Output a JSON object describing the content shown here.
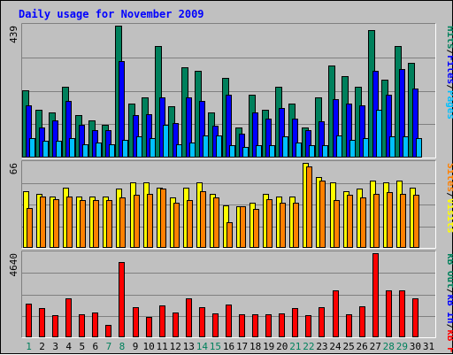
{
  "chart_data": [
    {
      "type": "bar",
      "title": "Daily usage for November 2009",
      "axis_max_label": "439",
      "right_labels": [
        "Pages",
        "/",
        "Files",
        "/",
        "Hits"
      ],
      "categories": [
        "1",
        "2",
        "3",
        "4",
        "5",
        "6",
        "7",
        "8",
        "9",
        "10",
        "11",
        "12",
        "13",
        "14",
        "15",
        "16",
        "17",
        "18",
        "19",
        "20",
        "21",
        "22",
        "23",
        "24",
        "25",
        "26",
        "27",
        "28",
        "29",
        "30",
        "31"
      ],
      "weekend_days": [
        1,
        7,
        8,
        14,
        15,
        21,
        22,
        28,
        29
      ],
      "ylim": [
        0,
        439
      ],
      "series": [
        {
          "name": "Hits",
          "color": "#00805c",
          "values": [
            225,
            160,
            150,
            235,
            140,
            125,
            110,
            439,
            180,
            200,
            370,
            170,
            300,
            290,
            150,
            265,
            100,
            210,
            160,
            235,
            180,
            100,
            200,
            305,
            270,
            235,
            425,
            260,
            370,
            315,
            0
          ]
        },
        {
          "name": "Files",
          "color": "#0000ff",
          "values": [
            175,
            100,
            125,
            190,
            110,
            90,
            90,
            320,
            140,
            145,
            200,
            115,
            200,
            190,
            105,
            210,
            80,
            150,
            130,
            165,
            130,
            90,
            120,
            195,
            180,
            175,
            290,
            210,
            295,
            230,
            0
          ]
        },
        {
          "name": "Pages",
          "color": "#00c0ff",
          "values": [
            65,
            55,
            55,
            65,
            45,
            50,
            45,
            60,
            70,
            65,
            110,
            45,
            50,
            75,
            75,
            40,
            35,
            40,
            40,
            70,
            50,
            40,
            40,
            75,
            60,
            65,
            160,
            70,
            70,
            65,
            0
          ]
        }
      ]
    },
    {
      "type": "bar",
      "axis_max_label": "66",
      "right_labels": [
        "Visits",
        "/",
        "Sites"
      ],
      "categories": [
        "1",
        "2",
        "3",
        "4",
        "5",
        "6",
        "7",
        "8",
        "9",
        "10",
        "11",
        "12",
        "13",
        "14",
        "15",
        "16",
        "17",
        "18",
        "19",
        "20",
        "21",
        "22",
        "23",
        "24",
        "25",
        "26",
        "27",
        "28",
        "29",
        "30",
        "31"
      ],
      "ylim": [
        0,
        66
      ],
      "series": [
        {
          "name": "Visits",
          "color": "#ffff00",
          "values": [
            44,
            42,
            40,
            47,
            40,
            40,
            40,
            46,
            51,
            51,
            47,
            39,
            47,
            51,
            42,
            33,
            32,
            35,
            42,
            40,
            40,
            66,
            55,
            51,
            44,
            46,
            52,
            51,
            52,
            47,
            0
          ]
        },
        {
          "name": "Sites",
          "color": "#ff8000",
          "values": [
            31,
            40,
            38,
            40,
            37,
            37,
            37,
            39,
            41,
            42,
            46,
            35,
            37,
            44,
            39,
            20,
            32,
            30,
            38,
            35,
            35,
            63,
            52,
            37,
            41,
            39,
            42,
            43,
            42,
            41,
            0
          ]
        }
      ]
    },
    {
      "type": "bar",
      "axis_max_label": "4640",
      "right_labels": [
        "kB F",
        "/",
        "kB In",
        "/",
        "kB Out"
      ],
      "categories": [
        "1",
        "2",
        "3",
        "4",
        "5",
        "6",
        "7",
        "8",
        "9",
        "10",
        "11",
        "12",
        "13",
        "14",
        "15",
        "16",
        "17",
        "18",
        "19",
        "20",
        "21",
        "22",
        "23",
        "24",
        "25",
        "26",
        "27",
        "28",
        "29",
        "30",
        "31"
      ],
      "ylim": [
        0,
        4640
      ],
      "series": [
        {
          "name": "kB F",
          "color": "#ff0000",
          "values": [
            1850,
            1620,
            1200,
            2150,
            1260,
            1390,
            690,
            4130,
            1640,
            1120,
            1780,
            1370,
            2150,
            1660,
            1320,
            1790,
            1260,
            1250,
            1270,
            1320,
            1630,
            1240,
            1640,
            2590,
            1280,
            1710,
            4640,
            2600,
            2580,
            2160,
            0
          ]
        }
      ]
    }
  ],
  "x_tick_colors": {
    "weekday": "#000000",
    "weekend": "#00805c"
  },
  "label_colors": {
    "title": "#0000ff",
    "axis": "#000000",
    "Pages": "#00c0ff",
    "Files": "#0000ff",
    "Hits": "#00805c",
    "Visits": "#ffff00",
    "Sites": "#ff8000",
    "kB F": "#ff0000",
    "kB In": "#0000ff",
    "kB Out": "#00805c",
    "sep": "#000000"
  }
}
